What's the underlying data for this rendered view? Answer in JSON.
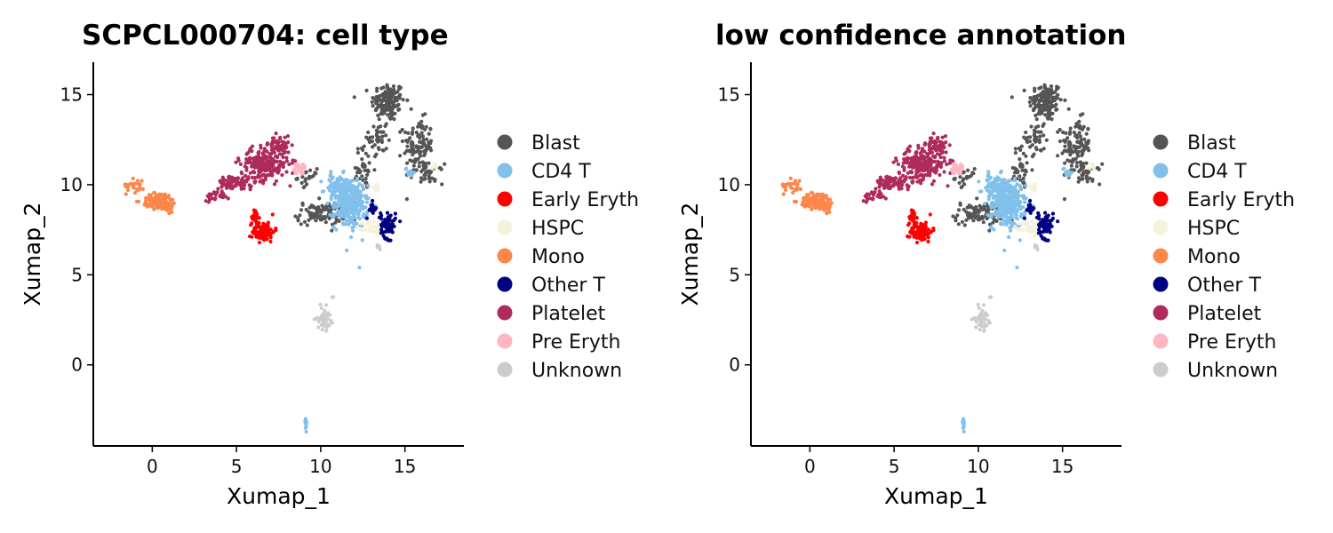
{
  "chart_data": [
    {
      "type": "scatter",
      "title": "SCPCL000704: cell type",
      "xlabel": "Xumap_1",
      "ylabel": "Xumap_2",
      "xlim": [
        -3.5,
        18.5
      ],
      "ylim": [
        -4.5,
        16.8
      ],
      "xticks": [
        "0",
        "5",
        "10",
        "15"
      ],
      "yticks": [
        "0",
        "5",
        "10",
        "15"
      ],
      "grid": false,
      "legend_position": "right",
      "series": [
        {
          "name": "Blast",
          "color": "#555555",
          "clusters": [
            [
              14,
              14.6,
              0.9,
              1.0,
              140
            ],
            [
              15.8,
              12.2,
              0.8,
              1.3,
              110
            ],
            [
              13.4,
              12.6,
              0.5,
              1.2,
              40
            ],
            [
              12.5,
              10.8,
              0.6,
              1.2,
              40
            ],
            [
              10,
              8.4,
              1.3,
              0.6,
              90
            ],
            [
              9.3,
              10.4,
              0.6,
              0.4,
              20
            ],
            [
              16.4,
              10.6,
              0.8,
              0.5,
              40
            ]
          ]
        },
        {
          "name": "CD4 T",
          "color": "#82C0EC",
          "clusters": [
            [
              11.8,
              8.9,
              0.9,
              1.2,
              280
            ],
            [
              11,
              9.8,
              0.7,
              0.7,
              80
            ],
            [
              9.1,
              -3.2,
              0.08,
              0.35,
              12
            ],
            [
              15.3,
              10.7,
              0.25,
              0.3,
              10
            ],
            [
              12.3,
              5.4,
              0.02,
              0.02,
              1
            ]
          ]
        },
        {
          "name": "Early Eryth",
          "color": "#FF0000",
          "clusters": [
            [
              6.6,
              7.4,
              0.6,
              0.5,
              90
            ],
            [
              6.1,
              8.2,
              0.2,
              0.4,
              20
            ]
          ]
        },
        {
          "name": "HSPC",
          "color": "#F5F2DA",
          "clusters": [
            [
              13.2,
              7.6,
              0.6,
              0.4,
              50
            ],
            [
              13.3,
              9.8,
              0.3,
              0.3,
              10
            ],
            [
              16.7,
              11,
              0.3,
              0.2,
              8
            ]
          ]
        },
        {
          "name": "Mono",
          "color": "#FF8548",
          "clusters": [
            [
              0.4,
              9.1,
              0.9,
              0.4,
              110
            ],
            [
              -1,
              10,
              0.5,
              0.4,
              25
            ],
            [
              0.9,
              8.7,
              0.5,
              0.25,
              20
            ]
          ]
        },
        {
          "name": "Other T",
          "color": "#000080",
          "clusters": [
            [
              14,
              7.8,
              0.4,
              0.7,
              70
            ],
            [
              13.1,
              8.6,
              0.2,
              0.4,
              15
            ]
          ]
        },
        {
          "name": "Platelet",
          "color": "#AE2B5C",
          "clusters": [
            [
              6.7,
              11.2,
              1.3,
              0.8,
              230
            ],
            [
              5,
              10.1,
              1.0,
              0.4,
              80
            ],
            [
              3.8,
              9.4,
              0.7,
              0.25,
              25
            ],
            [
              7.6,
              12.2,
              0.5,
              0.5,
              40
            ]
          ]
        },
        {
          "name": "Pre Eryth",
          "color": "#FFB6C1",
          "clusters": [
            [
              8.7,
              10.9,
              0.35,
              0.25,
              30
            ]
          ]
        },
        {
          "name": "Unknown",
          "color": "#CCCCCC",
          "clusters": [
            [
              10.2,
              2.6,
              0.35,
              0.55,
              45
            ],
            [
              13.4,
              6.6,
              0.15,
              0.15,
              8
            ],
            [
              10.7,
              3.8,
              0.05,
              0.1,
              3
            ]
          ]
        }
      ]
    },
    {
      "type": "scatter",
      "title": "low confidence annotation",
      "xlabel": "Xumap_1",
      "ylabel": "Xumap_2",
      "xlim": [
        -3.5,
        18.5
      ],
      "ylim": [
        -4.5,
        16.8
      ],
      "xticks": [
        "0",
        "5",
        "10",
        "15"
      ],
      "yticks": [
        "0",
        "5",
        "10",
        "15"
      ],
      "grid": false,
      "legend_position": "right",
      "same_data_as": 0
    }
  ]
}
